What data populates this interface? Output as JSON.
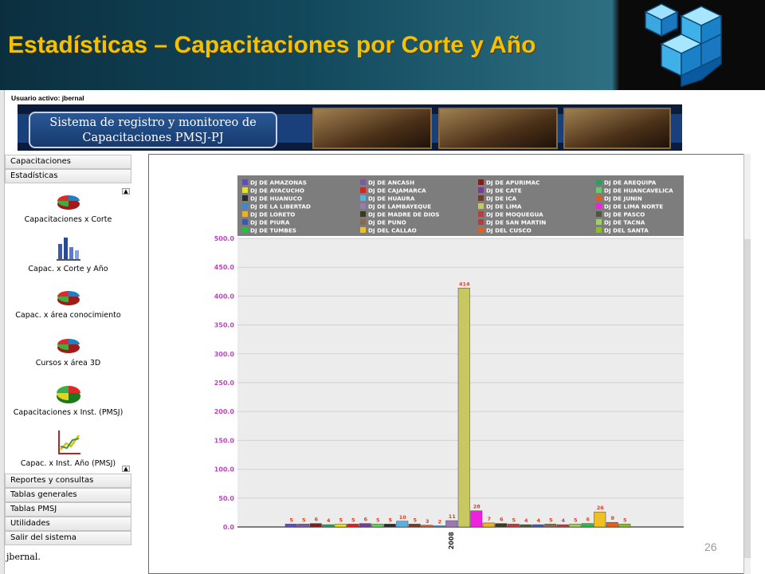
{
  "slide": {
    "title": "Estadísticas – Capacitaciones por Corte y Año",
    "page_number": "26"
  },
  "app": {
    "active_user_label": "Usuario activo:  jbernal",
    "banner_title_line1": "Sistema de registro y monitoreo de",
    "banner_title_line2": "Capacitaciones PMSJ-PJ",
    "footer_user": "jbernal."
  },
  "menu_top": [
    "Capacitaciones",
    "Estadísticas"
  ],
  "submenu": [
    {
      "label": "Capacitaciones x Corte",
      "icon": "pie-chart-icon"
    },
    {
      "label": "Capac. x Corte y Año",
      "icon": "bar-chart-icon"
    },
    {
      "label": "Capac. x área conocimiento",
      "icon": "pie-chart-icon"
    },
    {
      "label": "Cursos x área 3D",
      "icon": "pie-chart-icon"
    },
    {
      "label": "Capacitaciones x Inst. (PMSJ)",
      "icon": "pie-chart-icon"
    },
    {
      "label": "Capac. x  Inst.  Año (PMSJ)",
      "icon": "line-chart-icon"
    }
  ],
  "menu_bottom": [
    "Reportes y consultas",
    "Tablas generales",
    "Tablas PMSJ",
    "Utilidades",
    "Salir del sistema"
  ],
  "chart_data": {
    "type": "bar",
    "categories": [
      "2008"
    ],
    "ylim": [
      0,
      500
    ],
    "yticks": [
      "0.0",
      "50.0",
      "100.0",
      "150.0",
      "200.0",
      "250.0",
      "300.0",
      "350.0",
      "400.0",
      "450.0",
      "500.0"
    ],
    "legend_position": "top",
    "grid": true,
    "series": [
      {
        "name": "DJ DE AMAZONAS",
        "value": 5,
        "color": "#5a4ec0"
      },
      {
        "name": "DJ DE ANCASH",
        "value": 5,
        "color": "#7a5aa0"
      },
      {
        "name": "DJ DE APURIMAC",
        "value": 6,
        "color": "#8a1a1a"
      },
      {
        "name": "DJ DE AREQUIPA",
        "value": 4,
        "color": "#2aa060"
      },
      {
        "name": "DJ DE AYACUCHO",
        "value": 5,
        "color": "#e6e020"
      },
      {
        "name": "DJ DE CAJAMARCA",
        "value": 5,
        "color": "#e02020"
      },
      {
        "name": "DJ DE CATE",
        "value": 6,
        "color": "#7a3a9a"
      },
      {
        "name": "DJ DE HUANCAVELICA",
        "value": 5,
        "color": "#60d060"
      },
      {
        "name": "DJ DE HUANUCO",
        "value": 5,
        "color": "#2a2a2a"
      },
      {
        "name": "DJ DE HUAURA",
        "value": 10,
        "color": "#5ab0e0"
      },
      {
        "name": "DJ DE ICA",
        "value": 5,
        "color": "#7a3a20"
      },
      {
        "name": "DJ DE JUNIN",
        "value": 3,
        "color": "#e05a20"
      },
      {
        "name": "DJ DE LA LIBERTAD",
        "value": 2,
        "color": "#3a8ad0"
      },
      {
        "name": "DJ DE LAMBAYEQUE",
        "value": 11,
        "color": "#9a7ab0"
      },
      {
        "name": "DJ DE LIMA",
        "value": 414,
        "color": "#c8c860"
      },
      {
        "name": "DJ DE LIMA NORTE",
        "value": 28,
        "color": "#f020e0"
      },
      {
        "name": "DJ DE LORETO",
        "value": 7,
        "color": "#f0b020"
      },
      {
        "name": "DJ DE MADRE DE DIOS",
        "value": 6,
        "color": "#3a3a20"
      },
      {
        "name": "DJ DE MOQUEGUA",
        "value": 5,
        "color": "#c03a3a"
      },
      {
        "name": "DJ DE PASCO",
        "value": 4,
        "color": "#4a5a3a"
      },
      {
        "name": "DJ DE PIURA",
        "value": 4,
        "color": "#3a5ab0"
      },
      {
        "name": "DJ DE PUNO",
        "value": 5,
        "color": "#8a6a4a"
      },
      {
        "name": "DJ DE SAN MARTIN",
        "value": 4,
        "color": "#b04040"
      },
      {
        "name": "DJ DE TACNA",
        "value": 5,
        "color": "#a0d060"
      },
      {
        "name": "DJ DE TUMBES",
        "value": 6,
        "color": "#20c040"
      },
      {
        "name": "DJ DEL CALLAO",
        "value": 26,
        "color": "#f0c020"
      },
      {
        "name": "DJ DEL CUSCO",
        "value": 8,
        "color": "#e06020"
      },
      {
        "name": "DJ DEL SANTA",
        "value": 5,
        "color": "#8ac020"
      }
    ]
  }
}
